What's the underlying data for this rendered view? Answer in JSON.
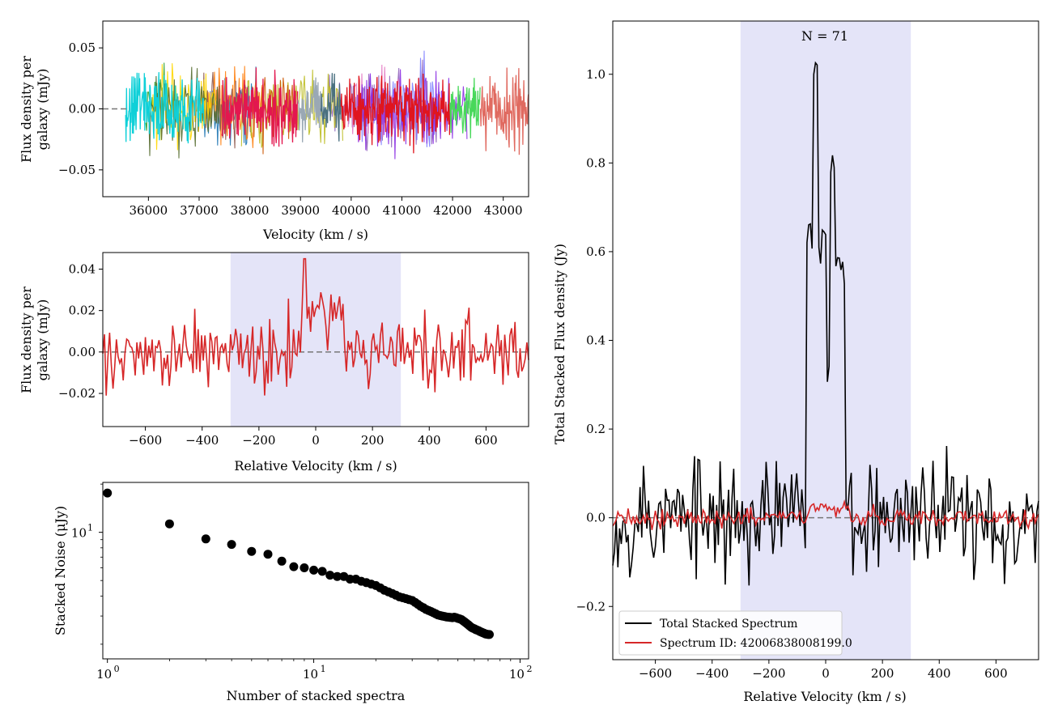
{
  "chart_data": [
    {
      "panel": "top-left",
      "type": "line",
      "xlabel": "Velocity (km / s)",
      "ylabel_line1": "Flux density per",
      "ylabel_line2": "galaxy (mJy)",
      "xlim": [
        35100,
        43500
      ],
      "ylim": [
        -0.072,
        0.072
      ],
      "xticks": [
        36000,
        37000,
        38000,
        39000,
        40000,
        41000,
        42000,
        43000
      ],
      "yticks": [
        0.05,
        0.0,
        -0.05
      ],
      "ytick_labels": [
        "0.05",
        "0.00",
        "−0.05"
      ],
      "zero_line": {
        "x_start": 35100,
        "x_end": 35600
      },
      "series": [
        {
          "color": "#0fd0d8",
          "x_range": [
            35550,
            37100
          ],
          "amplitude": 0.03
        },
        {
          "color": "#e3174f",
          "x_range": [
            37450,
            38950
          ],
          "amplitude": 0.03
        },
        {
          "color": "#9aa8b4",
          "x_range": [
            38950,
            39400
          ],
          "amplitude": 0.025
        },
        {
          "color": "#4a7080",
          "x_range": [
            39400,
            39800
          ],
          "amplitude": 0.025
        },
        {
          "color": "#e0151e",
          "x_range": [
            39800,
            41950
          ],
          "amplitude": 0.03
        },
        {
          "color": "#48d85a",
          "x_range": [
            41950,
            42550
          ],
          "amplitude": 0.025
        },
        {
          "color": "#e06a60",
          "x_range": [
            42550,
            43500
          ],
          "amplitude": 0.035
        }
      ],
      "background_colors": [
        "#1f77b4",
        "#ff7f0e",
        "#2ca02c",
        "#9467bd",
        "#8c564b",
        "#e377c2",
        "#bcbd22",
        "#ffd700",
        "#7f7fff",
        "#cc5500",
        "#8a2be2",
        "#556b2f"
      ]
    },
    {
      "panel": "middle-left",
      "type": "line",
      "xlabel": "Relative Velocity (km / s)",
      "ylabel_line1": "Flux density per",
      "ylabel_line2": "galaxy (mJy)",
      "xlim": [
        -750,
        750
      ],
      "ylim": [
        -0.036,
        0.048
      ],
      "xticks": [
        -600,
        -400,
        -200,
        0,
        200,
        400,
        600
      ],
      "xtick_labels": [
        "−600",
        "−400",
        "−200",
        "0",
        "200",
        "400",
        "600"
      ],
      "yticks": [
        0.04,
        0.02,
        0.0,
        -0.02
      ],
      "ytick_labels": [
        "0.04",
        "0.02",
        "0.00",
        "−0.02"
      ],
      "shaded_region": [
        -300,
        300
      ],
      "line_color": "#d62728",
      "signal": {
        "center": 0,
        "peak_value": 0.045,
        "plateau_range": [
          -50,
          100
        ],
        "noise_amplitude": 0.013
      }
    },
    {
      "panel": "bottom-left",
      "type": "scatter",
      "xscale": "log",
      "yscale": "log",
      "xlabel": "Number of stacked spectra",
      "ylabel": "Stacked Noise (μJy)",
      "xtick_labels": [
        {
          "base": "10",
          "exp": "0",
          "value": 1
        },
        {
          "base": "10",
          "exp": "1",
          "value": 10
        },
        {
          "base": "10",
          "exp": "2",
          "value": 100
        }
      ],
      "ytick_labels": [
        {
          "base": "10",
          "exp": "1",
          "value": 10
        }
      ],
      "xlim": [
        0.95,
        110
      ],
      "ylim": [
        1.62,
        20.5
      ],
      "points": [
        {
          "x": 1,
          "y": 17.6
        },
        {
          "x": 2,
          "y": 11.3
        },
        {
          "x": 3,
          "y": 9.1
        },
        {
          "x": 4,
          "y": 8.4
        },
        {
          "x": 5,
          "y": 7.6
        },
        {
          "x": 6,
          "y": 7.3
        },
        {
          "x": 7,
          "y": 6.6
        },
        {
          "x": 8,
          "y": 6.1
        },
        {
          "x": 9,
          "y": 6.0
        },
        {
          "x": 10,
          "y": 5.8
        },
        {
          "x": 11,
          "y": 5.7
        },
        {
          "x": 12,
          "y": 5.4
        },
        {
          "x": 13,
          "y": 5.3
        },
        {
          "x": 14,
          "y": 5.3
        },
        {
          "x": 15,
          "y": 5.1
        },
        {
          "x": 16,
          "y": 5.1
        },
        {
          "x": 17,
          "y": 4.95
        },
        {
          "x": 18,
          "y": 4.85
        },
        {
          "x": 19,
          "y": 4.75
        },
        {
          "x": 20,
          "y": 4.65
        },
        {
          "x": 21,
          "y": 4.5
        },
        {
          "x": 22,
          "y": 4.35
        },
        {
          "x": 23,
          "y": 4.25
        },
        {
          "x": 24,
          "y": 4.15
        },
        {
          "x": 25,
          "y": 4.05
        },
        {
          "x": 26,
          "y": 3.95
        },
        {
          "x": 27,
          "y": 3.9
        },
        {
          "x": 28,
          "y": 3.85
        },
        {
          "x": 29,
          "y": 3.8
        },
        {
          "x": 30,
          "y": 3.75
        },
        {
          "x": 31,
          "y": 3.65
        },
        {
          "x": 32,
          "y": 3.55
        },
        {
          "x": 33,
          "y": 3.45
        },
        {
          "x": 34,
          "y": 3.38
        },
        {
          "x": 35,
          "y": 3.3
        },
        {
          "x": 36,
          "y": 3.25
        },
        {
          "x": 37,
          "y": 3.2
        },
        {
          "x": 38,
          "y": 3.15
        },
        {
          "x": 39,
          "y": 3.1
        },
        {
          "x": 40,
          "y": 3.05
        },
        {
          "x": 41,
          "y": 3.02
        },
        {
          "x": 42,
          "y": 3.0
        },
        {
          "x": 43,
          "y": 2.98
        },
        {
          "x": 44,
          "y": 2.96
        },
        {
          "x": 45,
          "y": 2.95
        },
        {
          "x": 46,
          "y": 2.94
        },
        {
          "x": 47,
          "y": 2.93
        },
        {
          "x": 48,
          "y": 2.95
        },
        {
          "x": 49,
          "y": 2.93
        },
        {
          "x": 50,
          "y": 2.9
        },
        {
          "x": 51,
          "y": 2.88
        },
        {
          "x": 52,
          "y": 2.85
        },
        {
          "x": 53,
          "y": 2.8
        },
        {
          "x": 54,
          "y": 2.75
        },
        {
          "x": 55,
          "y": 2.7
        },
        {
          "x": 56,
          "y": 2.65
        },
        {
          "x": 57,
          "y": 2.6
        },
        {
          "x": 58,
          "y": 2.55
        },
        {
          "x": 59,
          "y": 2.52
        },
        {
          "x": 60,
          "y": 2.5
        },
        {
          "x": 61,
          "y": 2.47
        },
        {
          "x": 62,
          "y": 2.45
        },
        {
          "x": 63,
          "y": 2.43
        },
        {
          "x": 64,
          "y": 2.4
        },
        {
          "x": 65,
          "y": 2.38
        },
        {
          "x": 66,
          "y": 2.36
        },
        {
          "x": 67,
          "y": 2.34
        },
        {
          "x": 68,
          "y": 2.32
        },
        {
          "x": 69,
          "y": 2.31
        },
        {
          "x": 70,
          "y": 2.3
        },
        {
          "x": 71,
          "y": 2.3
        }
      ]
    },
    {
      "panel": "right",
      "type": "line",
      "xlabel": "Relative Velocity (km / s)",
      "ylabel": "Total Stacked Flux density (Jy)",
      "annotation": "N = 71",
      "xlim": [
        -750,
        750
      ],
      "ylim": [
        -0.32,
        1.12
      ],
      "xticks": [
        -600,
        -400,
        -200,
        0,
        200,
        400,
        600
      ],
      "xtick_labels": [
        "−600",
        "−400",
        "−200",
        "0",
        "200",
        "400",
        "600"
      ],
      "yticks": [
        1.0,
        0.8,
        0.6,
        0.4,
        0.2,
        0.0,
        -0.2
      ],
      "ytick_labels": [
        "1.0",
        "0.8",
        "0.6",
        "0.4",
        "0.2",
        "0.0",
        "−0.2"
      ],
      "shaded_region": [
        -300,
        300
      ],
      "legend_position": "lower-left",
      "series": [
        {
          "name": "Total Stacked Spectrum",
          "color": "#000000",
          "peaks": [
            {
              "x": -60,
              "y": 0.64
            },
            {
              "x": -35,
              "y": 1.03
            },
            {
              "x": -20,
              "y": 0.6
            },
            {
              "x": -5,
              "y": 0.66
            },
            {
              "x": 5,
              "y": 0.33
            },
            {
              "x": 25,
              "y": 0.79
            },
            {
              "x": 45,
              "y": 0.6
            },
            {
              "x": 60,
              "y": 0.57
            }
          ],
          "noise_amplitude": 0.13
        },
        {
          "name": "Spectrum ID: 42006838008199.0",
          "color": "#d62728",
          "noise_amplitude": 0.015
        }
      ]
    }
  ]
}
